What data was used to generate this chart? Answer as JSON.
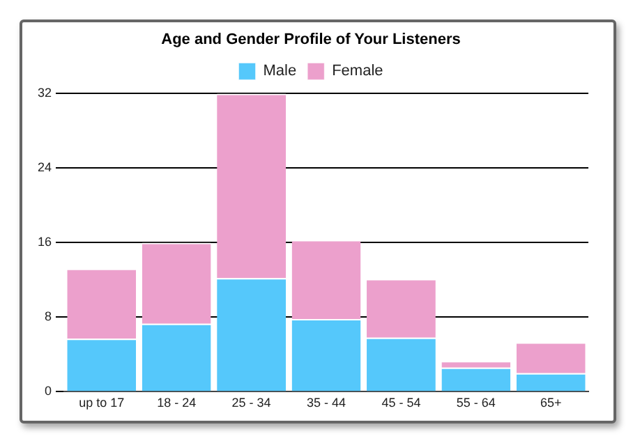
{
  "chart_data": {
    "type": "bar",
    "title": "Age and Gender Profile of Your Listeners",
    "categories": [
      "up to 17",
      "18 - 24",
      "25 - 34",
      "35 - 44",
      "45 - 54",
      "55 - 64",
      "65+"
    ],
    "stacked": true,
    "series": [
      {
        "name": "Male",
        "color": "#55c8fb",
        "values": [
          5.7,
          7.3,
          12.2,
          7.8,
          5.8,
          2.6,
          2.0
        ]
      },
      {
        "name": "Female",
        "color": "#eca0cc",
        "values": [
          7.5,
          8.7,
          19.8,
          8.5,
          6.3,
          0.7,
          3.3
        ]
      }
    ],
    "ylim": [
      0,
      32
    ],
    "yticks": [
      0,
      8,
      16,
      24,
      32
    ],
    "grid": "y",
    "legend": "top"
  }
}
